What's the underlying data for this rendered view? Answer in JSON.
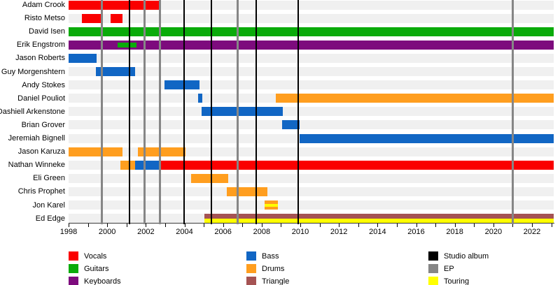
{
  "chart_data": {
    "type": "bar",
    "subtype": "band-members-gantt-timeline",
    "title": "",
    "xlabel": "",
    "ylabel": "",
    "grid": false,
    "legend_position": "bottom",
    "axis": {
      "start": 1998,
      "end": 2023.16,
      "tick_step": 1,
      "label_step": 2,
      "tick_labels": [
        "1998",
        "2000",
        "2002",
        "2004",
        "2006",
        "2008",
        "2010",
        "2012",
        "2014",
        "2016",
        "2018",
        "2020",
        "2022"
      ]
    },
    "colors": {
      "vocals": "#fa0000",
      "guitars": "#0aab0a",
      "keyboards": "#7d0b7d",
      "bass": "#1166c4",
      "drums": "#ff9e1f",
      "triangle": "#a55353",
      "studio": "#000000",
      "ep": "#868686",
      "touring": "#ffff00",
      "track_bg": "#f0f0f0"
    },
    "members": [
      {
        "name": "Adam Crook",
        "segments": [
          {
            "role": "vocals",
            "start": 1998.0,
            "end": 2002.73
          }
        ]
      },
      {
        "name": "Risto Metso",
        "segments": [
          {
            "role": "vocals",
            "start": 1998.68,
            "end": 1999.71
          },
          {
            "role": "vocals",
            "start": 2000.17,
            "end": 2000.8
          }
        ]
      },
      {
        "name": "David Isen",
        "segments": [
          {
            "role": "guitars",
            "start": 1998.0,
            "end": 2023.16
          }
        ]
      },
      {
        "name": "Erik Engstrom",
        "segments": [
          {
            "role": "keyboards",
            "start": 1998.0,
            "end": 2023.16
          },
          {
            "role": "guitars",
            "start": 2000.55,
            "end": 2001.52,
            "style": "center"
          }
        ]
      },
      {
        "name": "Jason Roberts",
        "segments": [
          {
            "role": "bass",
            "start": 1998.0,
            "end": 1999.46
          }
        ]
      },
      {
        "name": "Guy Morgenshtern",
        "segments": [
          {
            "role": "bass",
            "start": 1999.4,
            "end": 2001.46
          }
        ]
      },
      {
        "name": "Andy Stokes",
        "segments": [
          {
            "role": "bass",
            "start": 2002.97,
            "end": 2004.79
          }
        ]
      },
      {
        "name": "Daniel Pouliot",
        "segments": [
          {
            "role": "bass",
            "start": 2004.72,
            "end": 2004.94
          },
          {
            "role": "drums",
            "start": 2008.75,
            "end": 2023.16
          }
        ]
      },
      {
        "name": "Dashiell Arkenstone",
        "segments": [
          {
            "role": "bass",
            "start": 2004.9,
            "end": 2009.11
          }
        ]
      },
      {
        "name": "Brian Grover",
        "segments": [
          {
            "role": "bass",
            "start": 2009.07,
            "end": 2009.98
          }
        ]
      },
      {
        "name": "Jeremiah Bignell",
        "segments": [
          {
            "role": "bass",
            "start": 2009.98,
            "end": 2023.16
          }
        ]
      },
      {
        "name": "Jason Karuza",
        "segments": [
          {
            "role": "drums",
            "start": 1998.0,
            "end": 2000.8
          },
          {
            "role": "drums",
            "start": 2001.59,
            "end": 2004.06
          }
        ]
      },
      {
        "name": "Nathan Winneke",
        "segments": [
          {
            "role": "drums",
            "start": 2000.68,
            "end": 2001.46
          },
          {
            "role": "bass",
            "start": 2001.46,
            "end": 2002.79
          },
          {
            "role": "vocals",
            "start": 2002.79,
            "end": 2023.16
          }
        ]
      },
      {
        "name": "Eli Green",
        "segments": [
          {
            "role": "drums",
            "start": 2004.37,
            "end": 2006.28
          }
        ]
      },
      {
        "name": "Chris Prophet",
        "segments": [
          {
            "role": "drums",
            "start": 2006.21,
            "end": 2008.3
          }
        ]
      },
      {
        "name": "Jon Karel",
        "segments": [
          {
            "role": "drums",
            "start": 2008.18,
            "end": 2008.85
          },
          {
            "role": "touring",
            "start": 2008.18,
            "end": 2008.85,
            "style": "center-thin"
          }
        ]
      },
      {
        "name": "Ed Edge",
        "segments": [
          {
            "role": "triangle",
            "start": 2005.05,
            "end": 2023.16,
            "style": "top"
          },
          {
            "role": "touring",
            "start": 2005.05,
            "end": 2023.16,
            "style": "bottom"
          }
        ]
      }
    ],
    "releases": [
      {
        "type": "ep",
        "year": 1999.71
      },
      {
        "type": "studio",
        "year": 2001.16
      },
      {
        "type": "ep",
        "year": 2001.95
      },
      {
        "type": "ep",
        "year": 2002.73
      },
      {
        "type": "studio",
        "year": 2004.0
      },
      {
        "type": "studio",
        "year": 2005.41
      },
      {
        "type": "ep",
        "year": 2006.76
      },
      {
        "type": "studio",
        "year": 2007.73
      },
      {
        "type": "studio",
        "year": 2009.91
      },
      {
        "type": "ep",
        "year": 2021.02
      }
    ]
  },
  "legend": {
    "columns": [
      {
        "items": [
          {
            "label": "Vocals",
            "color_key": "vocals"
          },
          {
            "label": "Guitars",
            "color_key": "guitars"
          },
          {
            "label": "Keyboards",
            "color_key": "keyboards"
          }
        ]
      },
      {
        "items": [
          {
            "label": "Bass",
            "color_key": "bass"
          },
          {
            "label": "Drums",
            "color_key": "drums"
          },
          {
            "label": "Triangle",
            "color_key": "triangle"
          }
        ]
      },
      {
        "items": [
          {
            "label": "Studio album",
            "color_key": "studio"
          },
          {
            "label": "EP",
            "color_key": "ep"
          },
          {
            "label": "Touring",
            "color_key": "touring"
          }
        ]
      }
    ]
  }
}
